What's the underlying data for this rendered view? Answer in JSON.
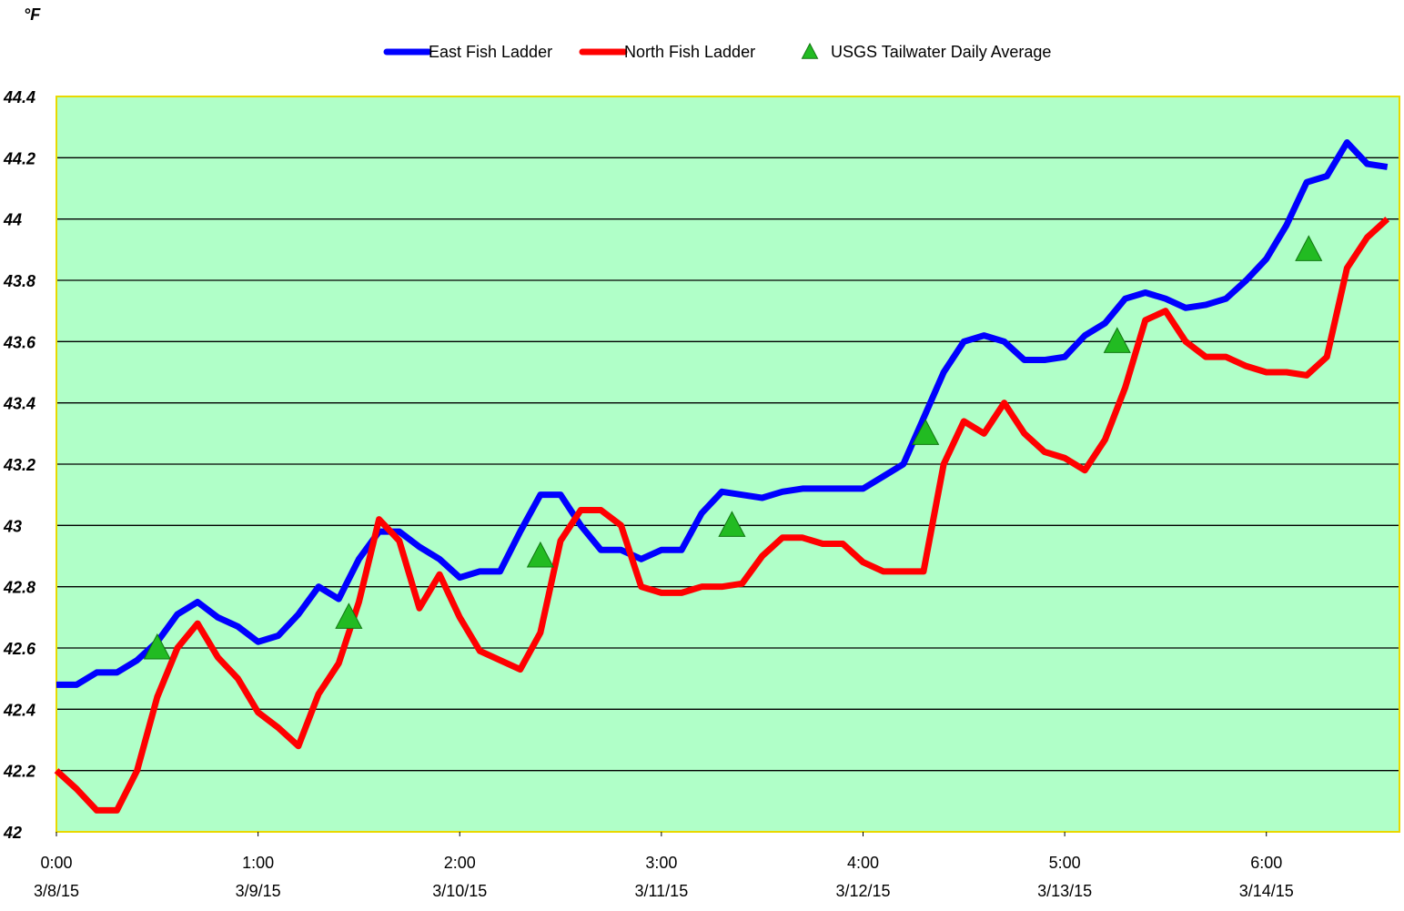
{
  "chart_data": {
    "type": "line",
    "y_label": "°F",
    "x": [
      0,
      0.1,
      0.2,
      0.3,
      0.4,
      0.5,
      0.6,
      0.7,
      0.8,
      0.9,
      1,
      1.1,
      1.2,
      1.3,
      1.4,
      1.5,
      1.6,
      1.7,
      1.8,
      1.9,
      2,
      2.1,
      2.2,
      2.3,
      2.4,
      2.5,
      2.6,
      2.7,
      2.8,
      2.9,
      3,
      3.1,
      3.2,
      3.3,
      3.4,
      3.5,
      3.6,
      3.7,
      3.8,
      3.9,
      4,
      4.1,
      4.2,
      4.3,
      4.4,
      4.5,
      4.6,
      4.7,
      4.8,
      4.9,
      5,
      5.1,
      5.2,
      5.3,
      5.4,
      5.5,
      5.6,
      5.7,
      5.8,
      5.9,
      6,
      6.1,
      6.2,
      6.3,
      6.4,
      6.5,
      6.6
    ],
    "series": [
      {
        "name": "East Fish Ladder",
        "color": "#0000ff",
        "values": [
          42.48,
          42.48,
          42.52,
          42.52,
          42.56,
          42.62,
          42.71,
          42.75,
          42.7,
          42.67,
          42.62,
          42.64,
          42.71,
          42.8,
          42.76,
          42.89,
          42.98,
          42.98,
          42.93,
          42.89,
          42.83,
          42.85,
          42.85,
          42.98,
          43.1,
          43.1,
          43.0,
          42.92,
          42.92,
          42.89,
          42.92,
          42.92,
          43.04,
          43.11,
          43.1,
          43.09,
          43.11,
          43.12,
          43.12,
          43.12,
          43.12,
          43.16,
          43.2,
          43.35,
          43.5,
          43.6,
          43.62,
          43.6,
          43.54,
          43.54,
          43.55,
          43.62,
          43.66,
          43.74,
          43.76,
          43.74,
          43.71,
          43.72,
          43.74,
          43.8,
          43.87,
          43.98,
          44.12,
          44.14,
          44.25,
          44.18,
          44.17
        ]
      },
      {
        "name": "North Fish Ladder",
        "color": "#ff0000",
        "values": [
          42.2,
          42.14,
          42.07,
          42.07,
          42.2,
          42.44,
          42.6,
          42.68,
          42.57,
          42.5,
          42.39,
          42.34,
          42.28,
          42.45,
          42.55,
          42.75,
          43.02,
          42.95,
          42.73,
          42.84,
          42.7,
          42.59,
          42.56,
          42.53,
          42.65,
          42.95,
          43.05,
          43.05,
          43.0,
          42.8,
          42.78,
          42.78,
          42.8,
          42.8,
          42.81,
          42.9,
          42.96,
          42.96,
          42.94,
          42.94,
          42.88,
          42.85,
          42.85,
          42.85,
          43.2,
          43.34,
          43.3,
          43.4,
          43.3,
          43.24,
          43.22,
          43.18,
          43.28,
          43.45,
          43.67,
          43.7,
          43.6,
          43.55,
          43.55,
          43.52,
          43.5,
          43.5,
          43.49,
          43.55,
          43.84,
          43.94,
          44.0
        ]
      },
      {
        "name": "USGS Tailwater Daily Average",
        "color": "#22bb22",
        "x": [
          0.5,
          1.45,
          2.4,
          3.35,
          4.31,
          5.26,
          6.21
        ],
        "values": [
          42.6,
          42.7,
          42.9,
          43.0,
          43.3,
          43.6,
          43.9
        ]
      }
    ],
    "xlim": [
      0,
      6.66
    ],
    "xticks": [
      {
        "value": 0,
        "label": "0:00\n3/8/15"
      },
      {
        "value": 1,
        "label": "1:00\n3/9/15"
      },
      {
        "value": 2,
        "label": "2:00\n3/10/15"
      },
      {
        "value": 3,
        "label": "3:00\n3/11/15"
      },
      {
        "value": 4,
        "label": "4:00\n3/12/15"
      },
      {
        "value": 5,
        "label": "5:00\n3/13/15"
      },
      {
        "value": 6,
        "label": "6:00\n3/14/15"
      }
    ],
    "ylim": [
      42,
      44.4
    ],
    "yticks": [
      42,
      42.2,
      42.4,
      42.6,
      42.8,
      43,
      43.2,
      43.4,
      43.6,
      43.8,
      44,
      44.2,
      44.4
    ],
    "grid": true,
    "plot_background": "#b0ffc8"
  }
}
